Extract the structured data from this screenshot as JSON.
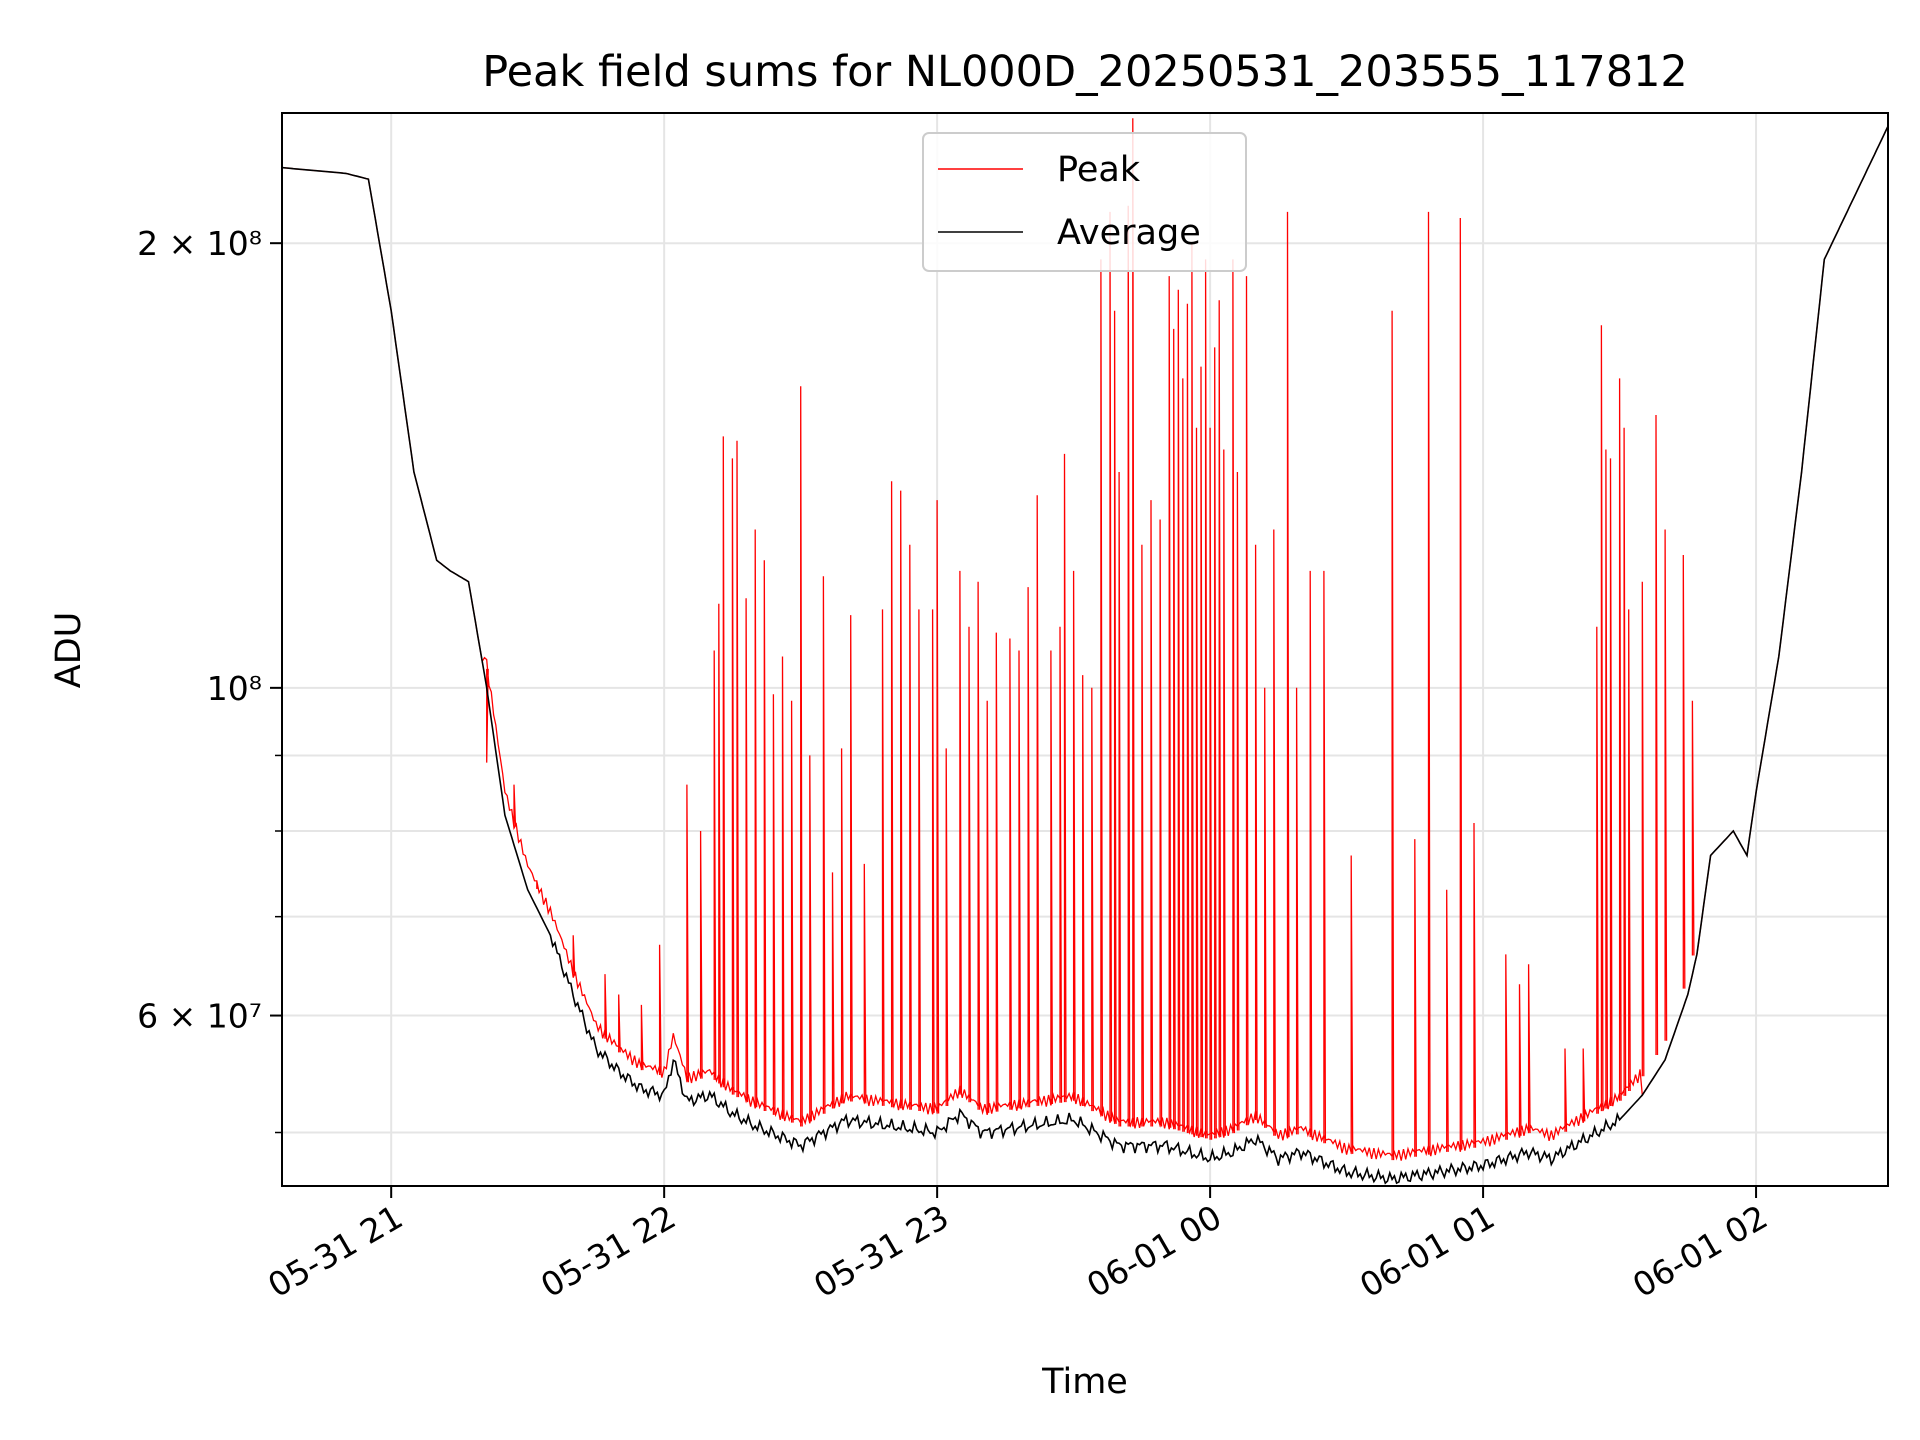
{
  "chart_data": {
    "type": "line",
    "title": "Peak field sums for NL000D_20250531_203555_117812",
    "xlabel": "Time",
    "ylabel": "ADU",
    "yscale": "log",
    "xlim": [
      "2025-05-31 20:36",
      "2025-06-01 02:29"
    ],
    "ylim": [
      46000000,
      245000000
    ],
    "x_ticks": [
      "05-31 21",
      "05-31 22",
      "05-31 23",
      "06-01 00",
      "06-01 01",
      "06-01 02"
    ],
    "y_ticks": [
      "2 × 10⁸",
      "10⁸",
      "6 × 10⁷"
    ],
    "grid": true,
    "legend": {
      "position": "top-center",
      "entries": [
        "Peak",
        "Average"
      ]
    },
    "colors": {
      "peak": "#ff0000",
      "average": "#000000"
    },
    "series": [
      {
        "name": "Average",
        "times": [
          "20:36",
          "20:50",
          "20:55",
          "21:00",
          "21:05",
          "21:10",
          "21:13",
          "21:17",
          "21:21",
          "21:25",
          "21:30",
          "21:35",
          "21:40",
          "21:45",
          "21:50",
          "21:55",
          "22:00",
          "22:02",
          "22:05",
          "22:10",
          "22:15",
          "22:20",
          "22:30",
          "22:40",
          "22:50",
          "23:00",
          "23:05",
          "23:10",
          "23:20",
          "23:30",
          "23:40",
          "23:50",
          "00:00",
          "00:05",
          "00:10",
          "00:15",
          "00:20",
          "00:30",
          "00:40",
          "00:50",
          "01:00",
          "01:10",
          "01:15",
          "01:20",
          "01:30",
          "01:35",
          "01:40",
          "01:45",
          "01:47",
          "01:50",
          "01:55",
          "01:58",
          "02:00",
          "02:05",
          "02:10",
          "02:15",
          "02:29"
        ],
        "values": [
          225000000,
          223000000,
          221000000,
          180000000,
          140000000,
          122000000,
          120000000,
          118000000,
          100000000,
          82000000,
          73000000,
          68000000,
          62000000,
          57000000,
          55000000,
          53500000,
          53000000,
          56000000,
          52500000,
          53000000,
          51500000,
          50500000,
          49000000,
          51000000,
          50500000,
          50000000,
          51500000,
          50000000,
          50500000,
          51000000,
          49000000,
          49000000,
          48000000,
          48500000,
          49500000,
          48000000,
          48500000,
          47000000,
          46500000,
          47000000,
          47500000,
          48500000,
          48000000,
          49000000,
          51000000,
          53000000,
          56000000,
          62000000,
          66000000,
          77000000,
          80000000,
          77000000,
          85000000,
          105000000,
          140000000,
          195000000,
          240000000
        ]
      },
      {
        "name": "Peak",
        "spikes": [
          {
            "t": "21:21",
            "v": 89000000
          },
          {
            "t": "21:27",
            "v": 86000000
          },
          {
            "t": "21:32",
            "v": 74000000
          },
          {
            "t": "21:40",
            "v": 68000000
          },
          {
            "t": "21:47",
            "v": 64000000
          },
          {
            "t": "21:50",
            "v": 62000000
          },
          {
            "t": "21:55",
            "v": 61000000
          },
          {
            "t": "21:59",
            "v": 67000000
          },
          {
            "t": "22:05",
            "v": 86000000
          },
          {
            "t": "22:08",
            "v": 80000000
          },
          {
            "t": "22:11",
            "v": 106000000
          },
          {
            "t": "22:12",
            "v": 114000000
          },
          {
            "t": "22:13",
            "v": 148000000
          },
          {
            "t": "22:15",
            "v": 143000000
          },
          {
            "t": "22:16",
            "v": 147000000
          },
          {
            "t": "22:18",
            "v": 115000000
          },
          {
            "t": "22:20",
            "v": 128000000
          },
          {
            "t": "22:22",
            "v": 122000000
          },
          {
            "t": "22:24",
            "v": 99000000
          },
          {
            "t": "22:26",
            "v": 105000000
          },
          {
            "t": "22:28",
            "v": 98000000
          },
          {
            "t": "22:30",
            "v": 160000000
          },
          {
            "t": "22:32",
            "v": 90000000
          },
          {
            "t": "22:35",
            "v": 119000000
          },
          {
            "t": "22:37",
            "v": 75000000
          },
          {
            "t": "22:39",
            "v": 91000000
          },
          {
            "t": "22:41",
            "v": 112000000
          },
          {
            "t": "22:44",
            "v": 76000000
          },
          {
            "t": "22:48",
            "v": 113000000
          },
          {
            "t": "22:50",
            "v": 138000000
          },
          {
            "t": "22:52",
            "v": 136000000
          },
          {
            "t": "22:54",
            "v": 125000000
          },
          {
            "t": "22:56",
            "v": 113000000
          },
          {
            "t": "22:59",
            "v": 113000000
          },
          {
            "t": "23:00",
            "v": 134000000
          },
          {
            "t": "23:02",
            "v": 91000000
          },
          {
            "t": "23:05",
            "v": 120000000
          },
          {
            "t": "23:07",
            "v": 110000000
          },
          {
            "t": "23:09",
            "v": 118000000
          },
          {
            "t": "23:11",
            "v": 98000000
          },
          {
            "t": "23:13",
            "v": 109000000
          },
          {
            "t": "23:16",
            "v": 108000000
          },
          {
            "t": "23:18",
            "v": 106000000
          },
          {
            "t": "23:20",
            "v": 117000000
          },
          {
            "t": "23:22",
            "v": 135000000
          },
          {
            "t": "23:25",
            "v": 106000000
          },
          {
            "t": "23:27",
            "v": 110000000
          },
          {
            "t": "23:28",
            "v": 144000000
          },
          {
            "t": "23:30",
            "v": 120000000
          },
          {
            "t": "23:32",
            "v": 102000000
          },
          {
            "t": "23:34",
            "v": 100000000
          },
          {
            "t": "23:36",
            "v": 195000000
          },
          {
            "t": "23:38",
            "v": 210000000
          },
          {
            "t": "23:39",
            "v": 180000000
          },
          {
            "t": "23:40",
            "v": 140000000
          },
          {
            "t": "23:42",
            "v": 212000000
          },
          {
            "t": "23:43",
            "v": 243000000
          },
          {
            "t": "23:45",
            "v": 125000000
          },
          {
            "t": "23:47",
            "v": 134000000
          },
          {
            "t": "23:49",
            "v": 130000000
          },
          {
            "t": "23:51",
            "v": 190000000
          },
          {
            "t": "23:52",
            "v": 175000000
          },
          {
            "t": "23:53",
            "v": 186000000
          },
          {
            "t": "23:54",
            "v": 162000000
          },
          {
            "t": "23:55",
            "v": 182000000
          },
          {
            "t": "23:56",
            "v": 200000000
          },
          {
            "t": "23:57",
            "v": 150000000
          },
          {
            "t": "23:58",
            "v": 165000000
          },
          {
            "t": "23:59",
            "v": 195000000
          },
          {
            "t": "00:00",
            "v": 150000000
          },
          {
            "t": "00:01",
            "v": 170000000
          },
          {
            "t": "00:02",
            "v": 183000000
          },
          {
            "t": "00:03",
            "v": 145000000
          },
          {
            "t": "00:05",
            "v": 195000000
          },
          {
            "t": "00:06",
            "v": 140000000
          },
          {
            "t": "00:08",
            "v": 190000000
          },
          {
            "t": "00:10",
            "v": 125000000
          },
          {
            "t": "00:12",
            "v": 100000000
          },
          {
            "t": "00:14",
            "v": 128000000
          },
          {
            "t": "00:17",
            "v": 210000000
          },
          {
            "t": "00:19",
            "v": 100000000
          },
          {
            "t": "00:22",
            "v": 120000000
          },
          {
            "t": "00:25",
            "v": 120000000
          },
          {
            "t": "00:31",
            "v": 77000000
          },
          {
            "t": "00:40",
            "v": 180000000
          },
          {
            "t": "00:45",
            "v": 79000000
          },
          {
            "t": "00:48",
            "v": 210000000
          },
          {
            "t": "00:52",
            "v": 73000000
          },
          {
            "t": "00:55",
            "v": 208000000
          },
          {
            "t": "00:58",
            "v": 81000000
          },
          {
            "t": "01:05",
            "v": 66000000
          },
          {
            "t": "01:08",
            "v": 63000000
          },
          {
            "t": "01:10",
            "v": 65000000
          },
          {
            "t": "01:18",
            "v": 57000000
          },
          {
            "t": "01:22",
            "v": 57000000
          },
          {
            "t": "01:25",
            "v": 110000000
          },
          {
            "t": "01:26",
            "v": 176000000
          },
          {
            "t": "01:27",
            "v": 145000000
          },
          {
            "t": "01:28",
            "v": 143000000
          },
          {
            "t": "01:30",
            "v": 162000000
          },
          {
            "t": "01:31",
            "v": 150000000
          },
          {
            "t": "01:32",
            "v": 113000000
          },
          {
            "t": "01:35",
            "v": 118000000
          },
          {
            "t": "01:38",
            "v": 153000000
          },
          {
            "t": "01:40",
            "v": 128000000
          },
          {
            "t": "01:44",
            "v": 123000000
          },
          {
            "t": "01:46",
            "v": 98000000
          }
        ]
      }
    ]
  }
}
